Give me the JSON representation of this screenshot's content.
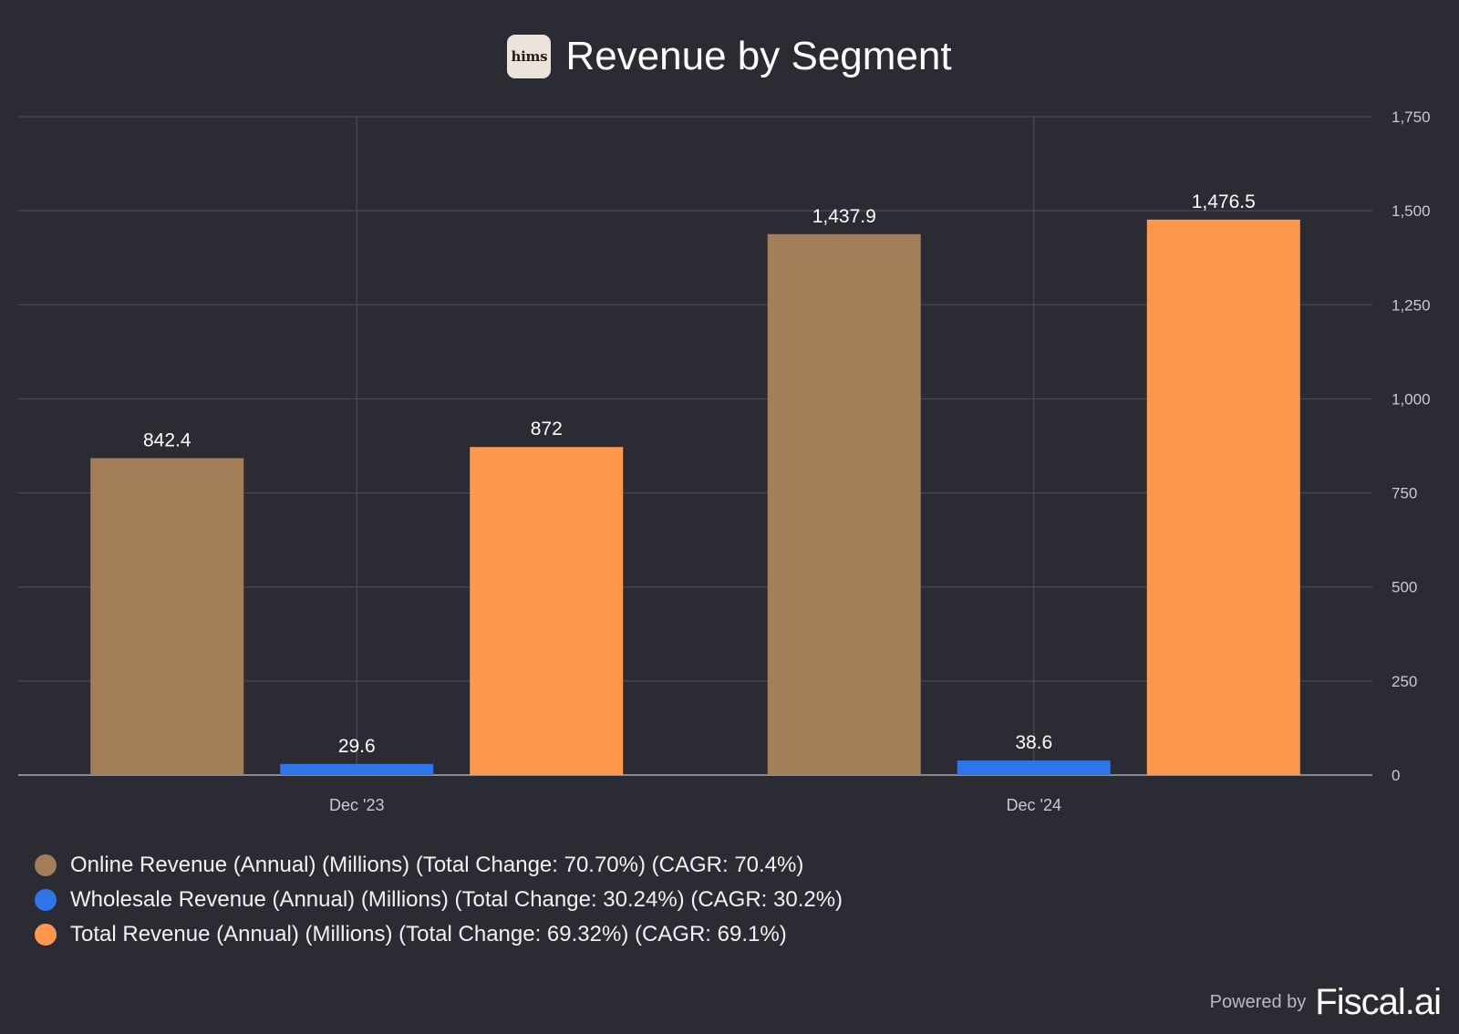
{
  "header": {
    "logo_text": "hims",
    "title": "Revenue by Segment"
  },
  "chart_data": {
    "type": "bar",
    "title": "Revenue by Segment",
    "xlabel": "",
    "ylabel": "",
    "categories": [
      "Dec '23",
      "Dec '24"
    ],
    "series": [
      {
        "name": "Online Revenue (Annual) (Millions) (Total Change: 70.70%) (CAGR: 70.4%)",
        "values": [
          842.4,
          1437.9
        ],
        "labels": [
          "842.4",
          "1,437.9"
        ],
        "color": "#a47e59"
      },
      {
        "name": "Wholesale Revenue (Annual) (Millions) (Total Change: 30.24%) (CAGR: 30.2%)",
        "values": [
          29.6,
          38.6
        ],
        "labels": [
          "29.6",
          "38.6"
        ],
        "color": "#2f74e8"
      },
      {
        "name": "Total Revenue (Annual) (Millions) (Total Change: 69.32%) (CAGR: 69.1%)",
        "values": [
          872,
          1476.5
        ],
        "labels": [
          "872",
          "1,476.5"
        ],
        "color": "#ff984c"
      }
    ],
    "ylim": [
      0,
      1750
    ],
    "yticks": [
      0,
      250,
      500,
      750,
      1000,
      1250,
      1500,
      1750
    ],
    "ytick_labels": [
      "0",
      "250",
      "500",
      "750",
      "1,000",
      "1,250",
      "1,500",
      "1,750"
    ],
    "y_axis_side": "right",
    "grid": true,
    "legend_position": "bottom-left"
  },
  "footer": {
    "powered_by": "Powered by",
    "brand": "Fiscal.ai"
  }
}
